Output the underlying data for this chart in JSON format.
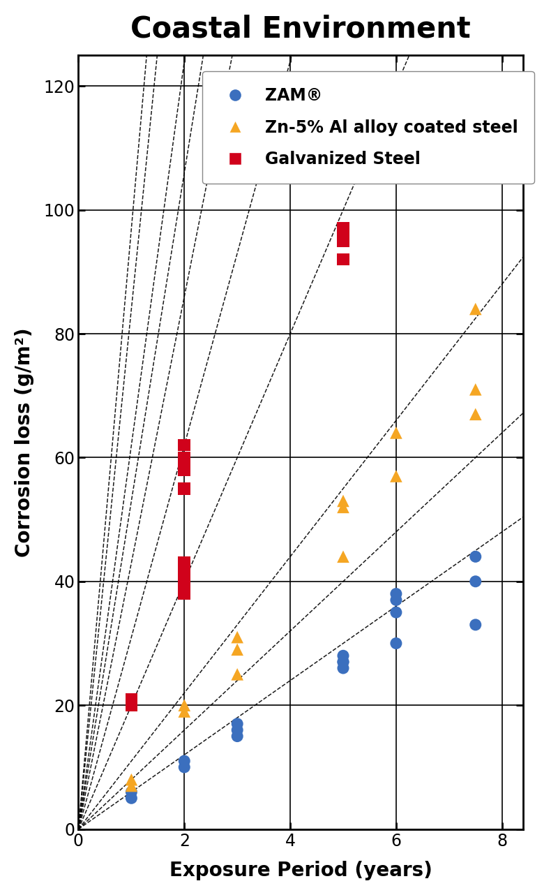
{
  "title": "Coastal Environment",
  "xlabel": "Exposure Period (years)",
  "ylabel": "Corrosion loss (g/m²)",
  "xlim": [
    0,
    8.4
  ],
  "ylim": [
    0,
    125
  ],
  "xticks": [
    0,
    2,
    4,
    6,
    8
  ],
  "yticks": [
    0,
    20,
    40,
    60,
    80,
    100,
    120
  ],
  "zam_color": "#3B6FBE",
  "zn5al_color": "#F5A623",
  "galv_color": "#D0021B",
  "zam_points": [
    [
      1,
      6
    ],
    [
      1,
      5
    ],
    [
      2,
      11
    ],
    [
      2,
      10
    ],
    [
      3,
      17
    ],
    [
      3,
      16
    ],
    [
      3,
      15
    ],
    [
      5,
      28
    ],
    [
      5,
      27
    ],
    [
      5,
      27
    ],
    [
      5,
      26
    ],
    [
      6,
      38
    ],
    [
      6,
      37
    ],
    [
      6,
      35
    ],
    [
      6,
      30
    ],
    [
      7.5,
      44
    ],
    [
      7.5,
      40
    ],
    [
      7.5,
      33
    ]
  ],
  "zn5al_points": [
    [
      1,
      8
    ],
    [
      1,
      7
    ],
    [
      2,
      20
    ],
    [
      2,
      19
    ],
    [
      3,
      31
    ],
    [
      3,
      29
    ],
    [
      3,
      25
    ],
    [
      5,
      53
    ],
    [
      5,
      52
    ],
    [
      5,
      44
    ],
    [
      6,
      64
    ],
    [
      6,
      57
    ],
    [
      7.5,
      84
    ],
    [
      7.5,
      71
    ],
    [
      7.5,
      67
    ]
  ],
  "galv_points": [
    [
      1,
      21
    ],
    [
      1,
      20
    ],
    [
      2,
      43
    ],
    [
      2,
      42
    ],
    [
      2,
      40
    ],
    [
      2,
      38
    ],
    [
      2,
      62
    ],
    [
      2,
      60
    ],
    [
      2,
      58
    ],
    [
      2,
      55
    ],
    [
      5,
      97
    ],
    [
      5,
      95
    ],
    [
      5,
      92
    ]
  ],
  "dashed_line_slopes": [
    6.0,
    8.0,
    11.0,
    20.0,
    31.0,
    43.0,
    53.0,
    62.0,
    84.0,
    97.0
  ],
  "legend_entries": [
    "ZAM®",
    "Zn-5% Al alloy coated steel",
    "Galvanized Steel"
  ],
  "background_color": "#ffffff",
  "title_fontsize": 30,
  "label_fontsize": 20,
  "tick_fontsize": 17,
  "legend_fontsize": 17
}
